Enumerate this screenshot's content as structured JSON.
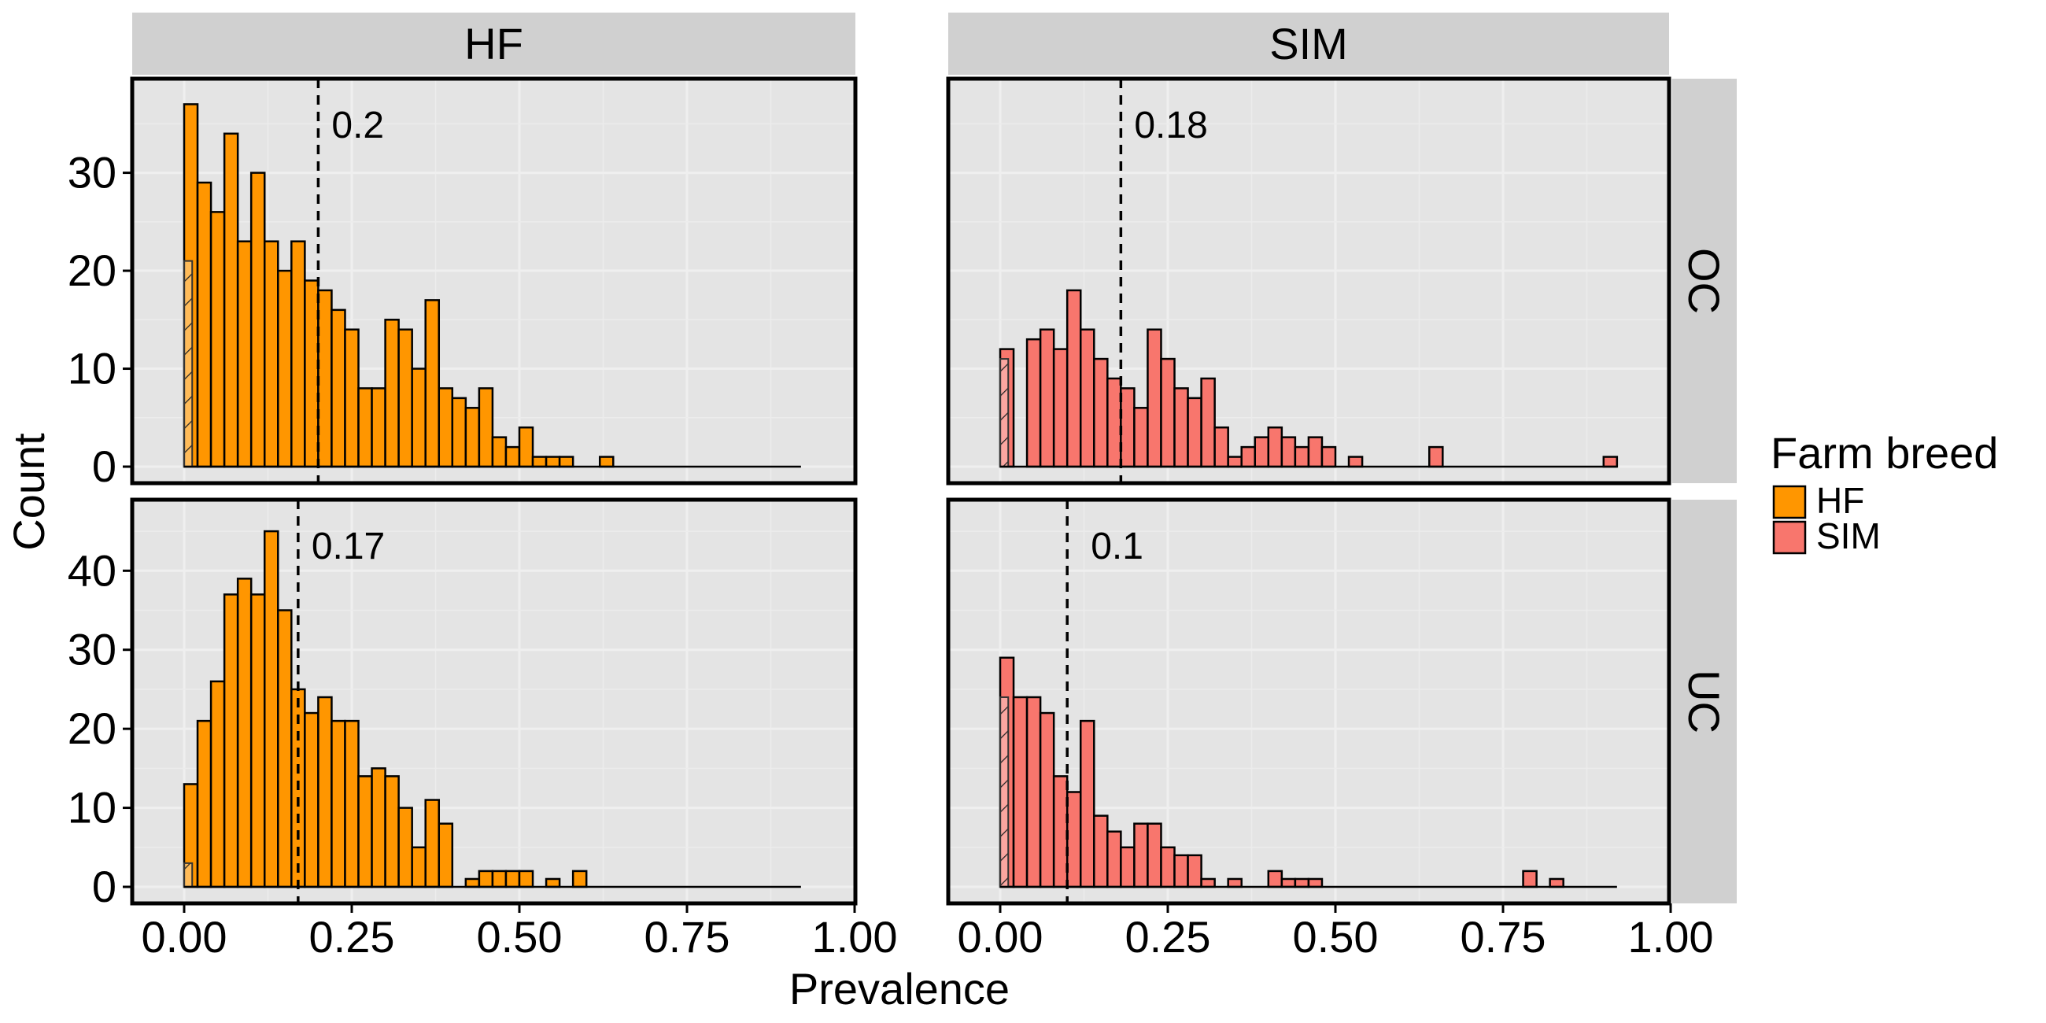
{
  "chart_data": {
    "type": "bar",
    "subtype": "faceted-histogram",
    "xlabel": "Prevalence",
    "ylabel": "Count",
    "x_ticks": [
      "0.00",
      "0.25",
      "0.50",
      "0.75",
      "1.00"
    ],
    "xlim": [
      0,
      1
    ],
    "bin_width": 0.02,
    "grid": true,
    "legend": {
      "title": "Farm breed",
      "position": "right",
      "entries": [
        {
          "label": "HF",
          "color": "#FF9600"
        },
        {
          "label": "SIM",
          "color": "#F8766D"
        }
      ]
    },
    "col_strips": [
      "HF",
      "SIM"
    ],
    "row_strips": [
      "OC",
      "UC"
    ],
    "panels": [
      {
        "col": "HF",
        "row": "OC",
        "fill": "#FF9600",
        "y_ticks": [
          "0",
          "10",
          "20",
          "30"
        ],
        "ylim": [
          0,
          38
        ],
        "mean_line": 0.2,
        "mean_label": "0.2",
        "hatched_bin_count": 21,
        "counts": [
          37,
          29,
          26,
          34,
          23,
          30,
          23,
          20,
          23,
          19,
          18,
          16,
          14,
          8,
          8,
          15,
          14,
          10,
          17,
          8,
          7,
          6,
          8,
          3,
          2,
          4,
          1,
          1,
          1,
          0,
          0,
          1
        ]
      },
      {
        "col": "SIM",
        "row": "OC",
        "fill": "#F8766D",
        "y_ticks": [],
        "ylim": [
          0,
          38
        ],
        "mean_line": 0.18,
        "mean_label": "0.18",
        "hatched_bin_count": 11,
        "counts": [
          12,
          0,
          13,
          14,
          12,
          18,
          14,
          11,
          9,
          8,
          6,
          14,
          11,
          8,
          7,
          9,
          4,
          1,
          2,
          3,
          4,
          3,
          2,
          3,
          2,
          0,
          1,
          0,
          0,
          0,
          0,
          0,
          2,
          0,
          0,
          0,
          0,
          0,
          0,
          0,
          0,
          0,
          0,
          0,
          0,
          1
        ]
      },
      {
        "col": "HF",
        "row": "UC",
        "fill": "#FF9600",
        "y_ticks": [
          "0",
          "10",
          "20",
          "30",
          "40"
        ],
        "ylim": [
          0,
          47
        ],
        "mean_line": 0.17,
        "mean_label": "0.17",
        "hatched_bin_count": 3,
        "counts": [
          13,
          21,
          26,
          37,
          39,
          37,
          45,
          35,
          25,
          22,
          24,
          21,
          21,
          14,
          15,
          14,
          10,
          5,
          11,
          8,
          0,
          1,
          2,
          2,
          2,
          2,
          0,
          1,
          0,
          2
        ]
      },
      {
        "col": "SIM",
        "row": "UC",
        "fill": "#F8766D",
        "y_ticks": [],
        "ylim": [
          0,
          47
        ],
        "mean_line": 0.1,
        "mean_label": "0.1",
        "hatched_bin_count": 24,
        "counts": [
          29,
          24,
          24,
          22,
          14,
          12,
          21,
          9,
          7,
          5,
          8,
          8,
          5,
          4,
          4,
          1,
          0,
          1,
          0,
          0,
          2,
          1,
          1,
          1,
          0,
          0,
          0,
          0,
          0,
          0,
          0,
          0,
          0,
          0,
          0,
          0,
          0,
          0,
          0,
          2,
          0,
          1
        ]
      }
    ]
  }
}
